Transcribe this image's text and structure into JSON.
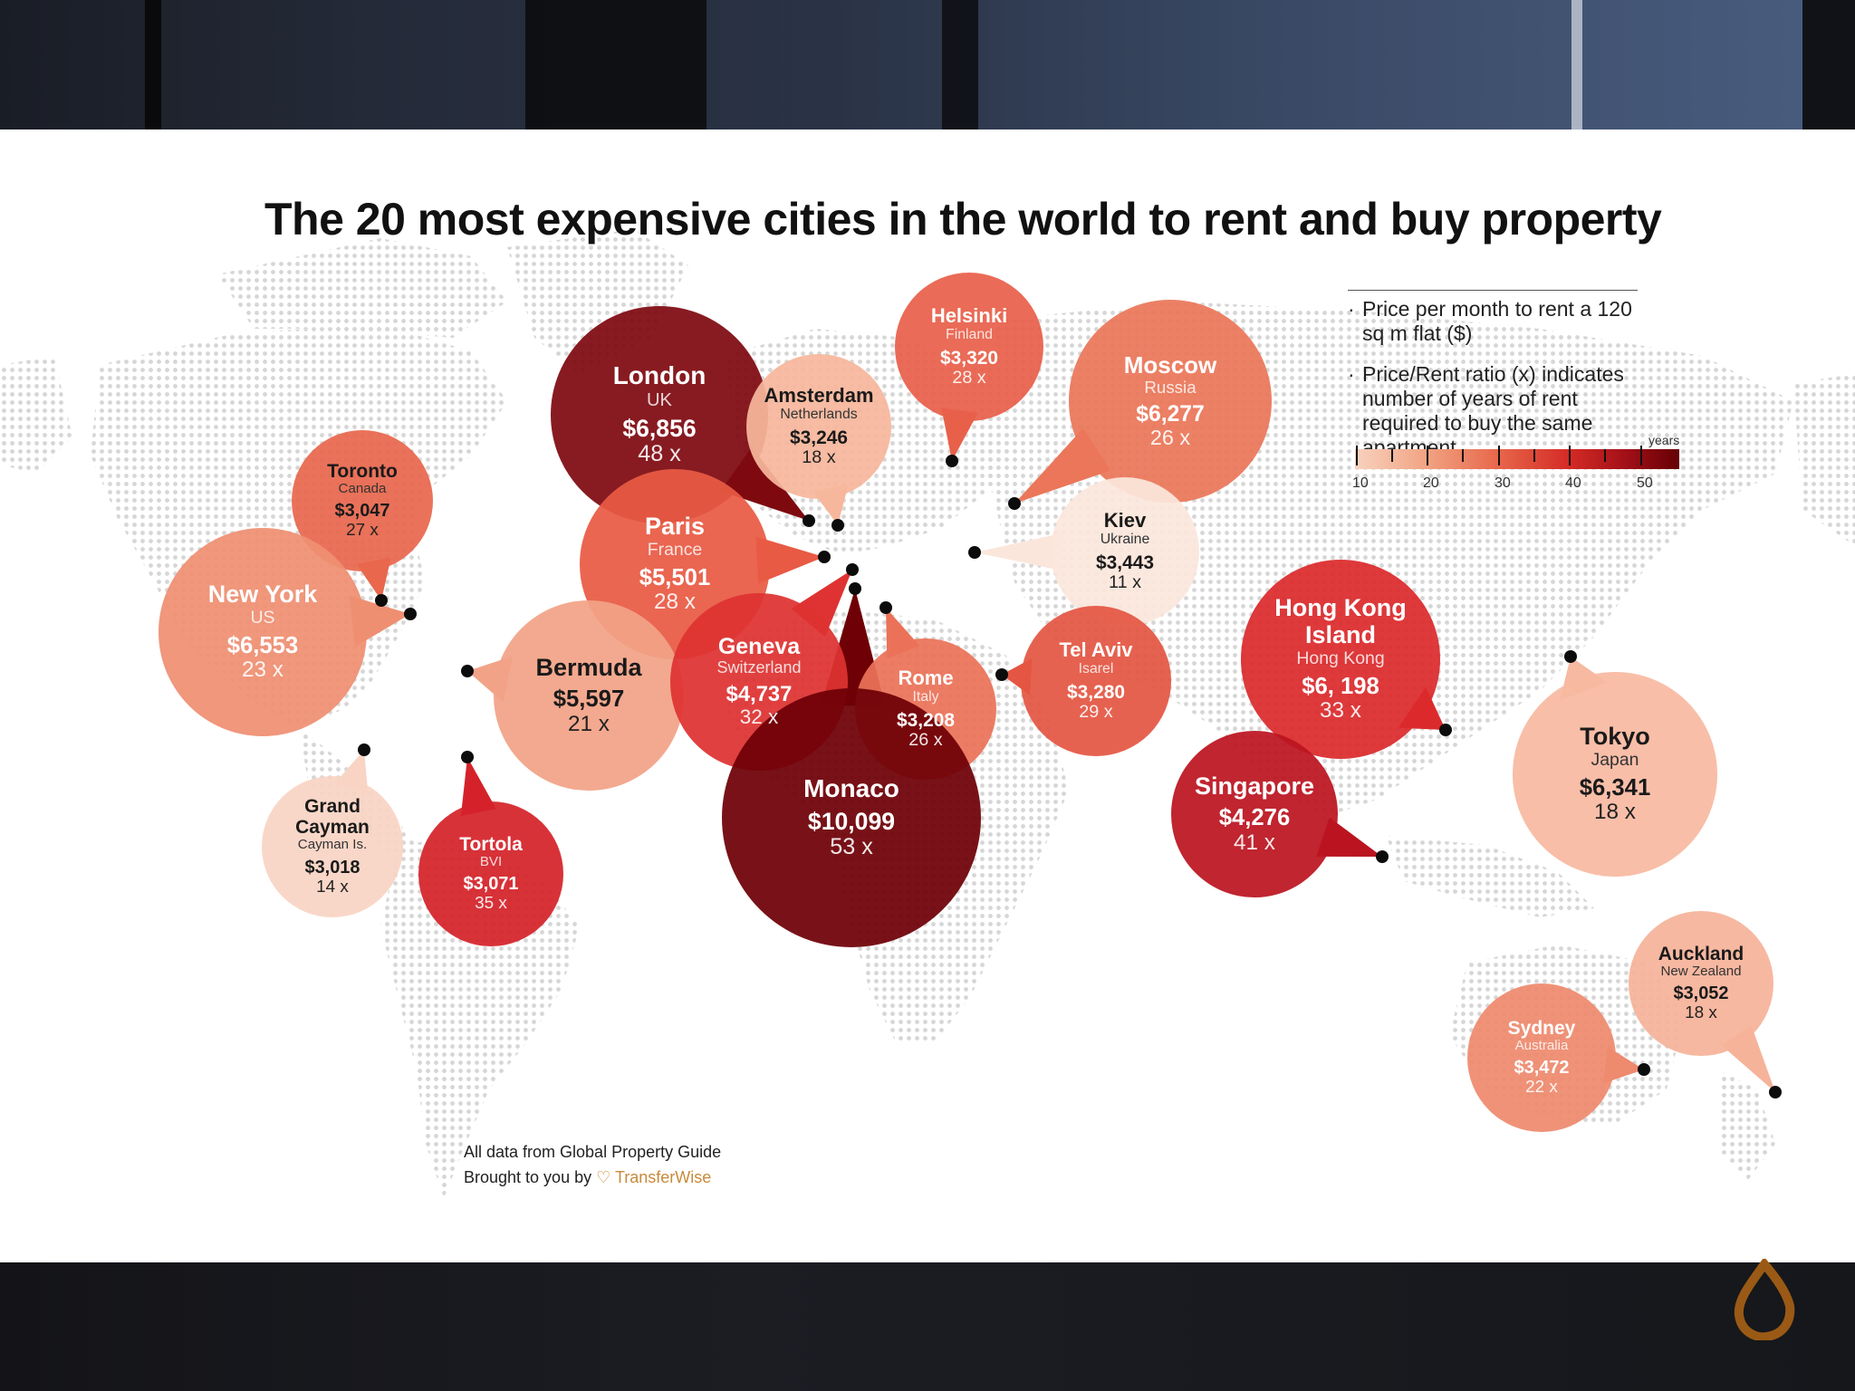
{
  "title": "The 20 most expensive cities in the world to rent and buy property",
  "legend": {
    "item1": "Price per month to rent a 120 sq m flat ($)",
    "item2": "Price/Rent ratio (x) indicates number of years of rent required to buy the same apartment",
    "scale_unit": "years",
    "scale_ticks": [
      "10",
      "20",
      "30",
      "40",
      "50"
    ]
  },
  "credits": {
    "line1": "All data from Global Property Guide",
    "line2": "Brought to you by",
    "brand": "TransferWise"
  },
  "cities": [
    {
      "id": "london",
      "city": "London",
      "country": "UK",
      "rent": "$6,856",
      "ratio": "48 x",
      "ratio_value": 48,
      "color": "#7e0a10"
    },
    {
      "id": "amsterdam",
      "city": "Amsterdam",
      "country": "Netherlands",
      "rent": "$3,246",
      "ratio": "18 x",
      "ratio_value": 18,
      "color": "#f6b79c"
    },
    {
      "id": "helsinki",
      "city": "Helsinki",
      "country": "Finland",
      "rent": "$3,320",
      "ratio": "28 x",
      "ratio_value": 28,
      "color": "#e8604a"
    },
    {
      "id": "moscow",
      "city": "Moscow",
      "country": "Russia",
      "rent": "$6,277",
      "ratio": "26 x",
      "ratio_value": 26,
      "color": "#eb7659"
    },
    {
      "id": "kiev",
      "city": "Kiev",
      "country": "Ukraine",
      "rent": "$3,443",
      "ratio": "11 x",
      "ratio_value": 11,
      "color": "#fbe6dc"
    },
    {
      "id": "toronto",
      "city": "Toronto",
      "country": "Canada",
      "rent": "$3,047",
      "ratio": "27 x",
      "ratio_value": 27,
      "color": "#e8674d"
    },
    {
      "id": "newyork",
      "city": "New York",
      "country": "US",
      "rent": "$6,553",
      "ratio": "23 x",
      "ratio_value": 23,
      "color": "#ef8f72"
    },
    {
      "id": "paris",
      "city": "Paris",
      "country": "France",
      "rent": "$5,501",
      "ratio": "28 x",
      "ratio_value": 28,
      "color": "#e85a44"
    },
    {
      "id": "bermuda",
      "city": "Bermuda",
      "country": "",
      "rent": "$5,597",
      "ratio": "21 x",
      "ratio_value": 21,
      "color": "#f2a387"
    },
    {
      "id": "geneva",
      "city": "Geneva",
      "country": "Switzerland",
      "rent": "$4,737",
      "ratio": "32 x",
      "ratio_value": 32,
      "color": "#de3332"
    },
    {
      "id": "rome",
      "city": "Rome",
      "country": "Italy",
      "rent": "$3,208",
      "ratio": "26 x",
      "ratio_value": 26,
      "color": "#eb7258"
    },
    {
      "id": "telaviv",
      "city": "Tel Aviv",
      "country": "Isarel",
      "rent": "$3,280",
      "ratio": "29 x",
      "ratio_value": 29,
      "color": "#e45643"
    },
    {
      "id": "monaco",
      "city": "Monaco",
      "country": "",
      "rent": "$10,099",
      "ratio": "53 x",
      "ratio_value": 53,
      "color": "#6e0006"
    },
    {
      "id": "hongkong",
      "city": "Hong Kong Island",
      "country": "Hong Kong",
      "rent": "$6, 198",
      "ratio": "33 x",
      "ratio_value": 33,
      "color": "#dc2a2c"
    },
    {
      "id": "singapore",
      "city": "Singapore",
      "country": "",
      "rent": "$4,276",
      "ratio": "41 x",
      "ratio_value": 41,
      "color": "#bb1420"
    },
    {
      "id": "tokyo",
      "city": "Tokyo",
      "country": "Japan",
      "rent": "$6,341",
      "ratio": "18 x",
      "ratio_value": 18,
      "color": "#f7b9a1"
    },
    {
      "id": "grandcayman",
      "city": "Grand Cayman",
      "country": "Cayman Is.",
      "rent": "$3,018",
      "ratio": "14 x",
      "ratio_value": 14,
      "color": "#f9d4c4"
    },
    {
      "id": "tortola",
      "city": "Tortola",
      "country": "BVI",
      "rent": "$3,071",
      "ratio": "35 x",
      "ratio_value": 35,
      "color": "#d5222a"
    },
    {
      "id": "auckland",
      "city": "Auckland",
      "country": "New Zealand",
      "rent": "$3,052",
      "ratio": "18 x",
      "ratio_value": 18,
      "color": "#f5b39a"
    },
    {
      "id": "sydney",
      "city": "Sydney",
      "country": "Australia",
      "rent": "$3,472",
      "ratio": "22 x",
      "ratio_value": 22,
      "color": "#ee8a6e"
    }
  ]
}
